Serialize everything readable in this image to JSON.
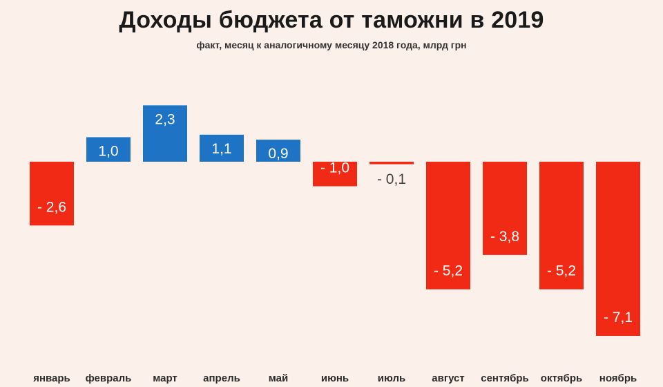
{
  "chart_data": {
    "type": "bar",
    "title": "Доходы бюджета от таможни в 2019",
    "subtitle": "факт, месяц к аналогичному месяцу 2018 года, млрд грн",
    "categories": [
      "январь",
      "февраль",
      "март",
      "апрель",
      "май",
      "июнь",
      "июль",
      "август",
      "сентябрь",
      "октябрь",
      "ноябрь"
    ],
    "values": [
      -2.6,
      1.0,
      2.3,
      1.1,
      0.9,
      -1.0,
      -0.1,
      -5.2,
      -3.8,
      -5.2,
      -7.1
    ],
    "data_labels": [
      "- 2,6",
      "1,0",
      "2,3",
      "1,1",
      "0,9",
      "- 1,0",
      "- 0,1",
      "- 5,2",
      "- 3,8",
      "- 5,2",
      "- 7,1"
    ],
    "xlabel": "",
    "ylabel": "",
    "ylim": [
      -7.1,
      2.3
    ],
    "grid": false,
    "legend": "none",
    "colors": {
      "positive": "#1f73c4",
      "negative": "#f02a14",
      "label": "#ffffff",
      "background": "#fbf1ea"
    }
  }
}
